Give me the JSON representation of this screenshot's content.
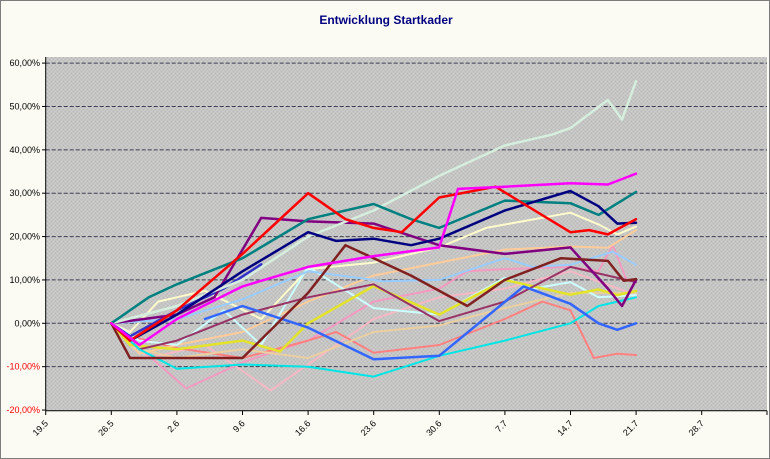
{
  "chart": {
    "title": "Entwicklung Startkader",
    "title_color": "#000080",
    "chart_bg": "#fbfbf3",
    "plot_bg": "#c5c5c5",
    "gridline_color": "#3c3c55",
    "axis_color": "#000000",
    "tick_label_color": "#000000",
    "negative_tick_label_color": "#ff0000",
    "legend": "none"
  },
  "chart_data": {
    "type": "line",
    "title": "Entwicklung Startkader",
    "xlabel": "",
    "ylabel": "",
    "ylim": [
      -20,
      60
    ],
    "y_tick_step": 10,
    "grid": "horizontal",
    "legend_position": "none",
    "x_axis_note": "weekly date labels (German d.m), data points in day units where day 0 = 19.5; lines span day 7 (26.5) to day 63 (21.7)",
    "x_axis_day_range": [
      0,
      77
    ],
    "y_ticks": [
      {
        "value": 60,
        "label": "60,00%"
      },
      {
        "value": 50,
        "label": "50,00%"
      },
      {
        "value": 40,
        "label": "40,00%"
      },
      {
        "value": 30,
        "label": "30,00%"
      },
      {
        "value": 20,
        "label": "20,00%"
      },
      {
        "value": 10,
        "label": "10,00%"
      },
      {
        "value": 0,
        "label": "0,00%"
      },
      {
        "value": -10,
        "label": "-10,00%"
      },
      {
        "value": -20,
        "label": "-20,00%"
      }
    ],
    "x_ticks": [
      {
        "day": 0,
        "label": "19.5"
      },
      {
        "day": 7,
        "label": "26.5"
      },
      {
        "day": 14,
        "label": "2.6"
      },
      {
        "day": 21,
        "label": "9.6"
      },
      {
        "day": 28,
        "label": "16.6"
      },
      {
        "day": 35,
        "label": "23.6"
      },
      {
        "day": 42,
        "label": "30.6"
      },
      {
        "day": 49,
        "label": "7.7"
      },
      {
        "day": 56,
        "label": "14.7"
      },
      {
        "day": 63,
        "label": "21.7"
      },
      {
        "day": 70,
        "label": "28.7"
      }
    ],
    "series": [
      {
        "name": "light-pink",
        "color": "#f5b8c4",
        "width": 2,
        "points": [
          [
            7,
            0
          ],
          [
            11,
            -8
          ],
          [
            17,
            -5
          ],
          [
            24,
            -15.5
          ],
          [
            35,
            1
          ],
          [
            42,
            6
          ],
          [
            49,
            8
          ],
          [
            56,
            12
          ],
          [
            63,
            6.5
          ]
        ]
      },
      {
        "name": "rose",
        "color": "#f49ac1",
        "width": 2,
        "points": [
          [
            7,
            0
          ],
          [
            15,
            -15
          ],
          [
            21,
            -9
          ],
          [
            28,
            -4
          ],
          [
            35,
            5
          ],
          [
            42,
            8
          ],
          [
            45,
            12
          ],
          [
            49,
            12.5
          ],
          [
            56,
            13
          ],
          [
            59,
            12
          ],
          [
            60.5,
            18
          ],
          [
            62,
            10
          ],
          [
            63,
            9.8
          ]
        ]
      },
      {
        "name": "salmon",
        "color": "#ff8080",
        "width": 2,
        "points": [
          [
            7,
            0
          ],
          [
            9,
            -3
          ],
          [
            14,
            -5.7
          ],
          [
            21,
            -8
          ],
          [
            28,
            -4
          ],
          [
            31,
            -2
          ],
          [
            35,
            -6.8
          ],
          [
            42,
            -5
          ],
          [
            49,
            1
          ],
          [
            53,
            5
          ],
          [
            56,
            3
          ],
          [
            58.5,
            -8
          ],
          [
            61,
            -7
          ],
          [
            63,
            -7.3
          ]
        ]
      },
      {
        "name": "sand",
        "color": "#ebcfa0",
        "width": 2,
        "points": [
          [
            7,
            0
          ],
          [
            10,
            -6
          ],
          [
            14,
            -8
          ],
          [
            21,
            -6
          ],
          [
            28,
            -8
          ],
          [
            35,
            -2
          ],
          [
            42,
            -0.5
          ],
          [
            45,
            1.3
          ],
          [
            49,
            3.5
          ],
          [
            56,
            7
          ],
          [
            63,
            7
          ]
        ]
      },
      {
        "name": "peach",
        "color": "#ffcc99",
        "width": 2,
        "points": [
          [
            7,
            0
          ],
          [
            10,
            -7
          ],
          [
            14,
            -5
          ],
          [
            21,
            -2
          ],
          [
            28,
            5
          ],
          [
            35,
            11
          ],
          [
            42,
            14
          ],
          [
            49,
            17
          ],
          [
            56,
            17.7
          ],
          [
            60,
            17.4
          ],
          [
            63,
            21.5
          ]
        ]
      },
      {
        "name": "cream",
        "color": "#fffccc",
        "width": 2,
        "points": [
          [
            7,
            0
          ],
          [
            9,
            -2
          ],
          [
            12,
            5
          ],
          [
            17,
            7.5
          ],
          [
            23,
            1
          ],
          [
            28,
            12.5
          ],
          [
            35,
            14
          ],
          [
            42,
            17.5
          ],
          [
            47,
            22
          ],
          [
            56,
            25.5
          ],
          [
            59,
            22.8
          ],
          [
            61,
            20.5
          ],
          [
            63,
            22.3
          ]
        ]
      },
      {
        "name": "pale-turquoise",
        "color": "#ccffff",
        "width": 2,
        "points": [
          [
            7,
            0
          ],
          [
            10,
            -4
          ],
          [
            14,
            -5
          ],
          [
            19,
            3
          ],
          [
            23,
            -5
          ],
          [
            28,
            13
          ],
          [
            35,
            3.5
          ],
          [
            42,
            2
          ],
          [
            49,
            10.5
          ],
          [
            52,
            8
          ],
          [
            56,
            9.5
          ],
          [
            59,
            6
          ],
          [
            63,
            6.5
          ]
        ]
      },
      {
        "name": "light-blue",
        "color": "#99ccff",
        "width": 2,
        "points": [
          [
            7,
            0
          ],
          [
            14,
            1
          ],
          [
            21,
            5.5
          ],
          [
            28,
            12
          ],
          [
            36,
            9.7
          ],
          [
            42,
            10
          ],
          [
            49,
            15
          ],
          [
            52,
            13
          ],
          [
            56,
            13.5
          ],
          [
            60.5,
            16.5
          ],
          [
            63,
            13.5
          ]
        ]
      },
      {
        "name": "yellow",
        "color": "#e3e329",
        "width": 2.5,
        "points": [
          [
            7,
            0
          ],
          [
            9,
            -5
          ],
          [
            14,
            -6
          ],
          [
            21,
            -4
          ],
          [
            25,
            -6.5
          ],
          [
            28,
            0
          ],
          [
            35,
            8.6
          ],
          [
            42,
            2
          ],
          [
            49,
            10
          ],
          [
            56,
            6.6
          ],
          [
            59,
            7.8
          ],
          [
            61,
            6.5
          ],
          [
            63,
            7.5
          ]
        ]
      },
      {
        "name": "plum",
        "color": "#993366",
        "width": 2,
        "points": [
          [
            7,
            0
          ],
          [
            10,
            -6
          ],
          [
            14,
            -4
          ],
          [
            21,
            2
          ],
          [
            28,
            6
          ],
          [
            35,
            9
          ],
          [
            42,
            0.5
          ],
          [
            49,
            5
          ],
          [
            56,
            13
          ],
          [
            63,
            9.5
          ]
        ]
      },
      {
        "name": "cyan",
        "color": "#00e6e6",
        "width": 2,
        "points": [
          [
            7,
            0
          ],
          [
            10,
            -6
          ],
          [
            14,
            -10.5
          ],
          [
            21,
            -9.5
          ],
          [
            28,
            -10
          ],
          [
            35,
            -12.3
          ],
          [
            42,
            -7.5
          ],
          [
            49,
            -4
          ],
          [
            56,
            0
          ],
          [
            59,
            4
          ],
          [
            63,
            6
          ]
        ]
      },
      {
        "name": "royal-blue",
        "color": "#3366ff",
        "width": 2.5,
        "points": [
          [
            17,
            1
          ],
          [
            21,
            4
          ],
          [
            28,
            -1
          ],
          [
            35,
            -8.3
          ],
          [
            42,
            -7.5
          ],
          [
            51,
            8.5
          ],
          [
            56,
            4.5
          ],
          [
            59,
            0
          ],
          [
            61,
            -1.5
          ],
          [
            63,
            0
          ]
        ]
      },
      {
        "name": "blue-short",
        "color": "#3333cc",
        "width": 2.5,
        "points": [
          [
            7,
            0
          ],
          [
            9,
            -3
          ],
          [
            14,
            3
          ],
          [
            19,
            8
          ],
          [
            23,
            13.6
          ]
        ]
      },
      {
        "name": "purple",
        "color": "#800080",
        "width": 2.5,
        "points": [
          [
            7,
            0
          ],
          [
            14,
            2
          ],
          [
            18,
            6
          ],
          [
            23,
            24.3
          ],
          [
            28,
            23.5
          ],
          [
            35,
            23
          ],
          [
            42,
            18
          ],
          [
            49,
            16
          ],
          [
            56,
            17.5
          ],
          [
            60,
            8
          ],
          [
            61.5,
            4
          ],
          [
            63,
            10
          ]
        ]
      },
      {
        "name": "maroon",
        "color": "#802020",
        "width": 2.5,
        "points": [
          [
            7,
            0
          ],
          [
            9,
            -8
          ],
          [
            21,
            -8
          ],
          [
            28,
            7
          ],
          [
            32,
            18
          ],
          [
            39,
            11
          ],
          [
            45,
            4
          ],
          [
            49,
            10
          ],
          [
            55,
            15
          ],
          [
            60,
            14.4
          ],
          [
            61.7,
            9.8
          ],
          [
            63,
            10.2
          ]
        ]
      },
      {
        "name": "mint",
        "color": "#d5eedd",
        "width": 2.5,
        "points": [
          [
            7,
            0
          ],
          [
            14,
            4
          ],
          [
            21,
            10
          ],
          [
            28,
            20
          ],
          [
            35,
            26
          ],
          [
            42,
            34
          ],
          [
            49,
            41
          ],
          [
            54,
            43.5
          ],
          [
            56,
            45
          ],
          [
            60,
            51.5
          ],
          [
            61.5,
            47
          ],
          [
            63,
            55.8
          ]
        ]
      },
      {
        "name": "teal",
        "color": "#008080",
        "width": 2.5,
        "points": [
          [
            7,
            0
          ],
          [
            11,
            6
          ],
          [
            14,
            9
          ],
          [
            21,
            15
          ],
          [
            28,
            24
          ],
          [
            35,
            27.5
          ],
          [
            39,
            24
          ],
          [
            42,
            22
          ],
          [
            49,
            28.3
          ],
          [
            56,
            27.7
          ],
          [
            59,
            25
          ],
          [
            63,
            30.3
          ]
        ]
      },
      {
        "name": "navy",
        "color": "#000080",
        "width": 2.5,
        "points": [
          [
            7,
            0
          ],
          [
            9,
            -4
          ],
          [
            14,
            2
          ],
          [
            21,
            12
          ],
          [
            28,
            21
          ],
          [
            31,
            19
          ],
          [
            35,
            19.5
          ],
          [
            39,
            18
          ],
          [
            42,
            19.5
          ],
          [
            49,
            26
          ],
          [
            56,
            30.5
          ],
          [
            59,
            27
          ],
          [
            61,
            23
          ],
          [
            63,
            23.2
          ]
        ]
      },
      {
        "name": "red",
        "color": "#ff0000",
        "width": 2.5,
        "points": [
          [
            7,
            0
          ],
          [
            9,
            -4
          ],
          [
            14,
            3
          ],
          [
            21,
            16
          ],
          [
            28,
            30
          ],
          [
            32,
            24
          ],
          [
            35,
            22
          ],
          [
            38,
            21
          ],
          [
            42,
            29
          ],
          [
            48,
            31.5
          ],
          [
            56,
            21
          ],
          [
            58,
            21.5
          ],
          [
            60,
            20.5
          ],
          [
            63,
            24
          ]
        ]
      },
      {
        "name": "magenta",
        "color": "#ff00ff",
        "width": 2.5,
        "points": [
          [
            7,
            0
          ],
          [
            10,
            -5
          ],
          [
            14,
            1
          ],
          [
            21,
            8.5
          ],
          [
            28,
            13
          ],
          [
            35,
            15.5
          ],
          [
            42,
            17.5
          ],
          [
            44,
            31
          ],
          [
            49,
            31.5
          ],
          [
            56,
            32.3
          ],
          [
            60,
            32
          ],
          [
            63,
            34.5
          ]
        ]
      }
    ]
  }
}
